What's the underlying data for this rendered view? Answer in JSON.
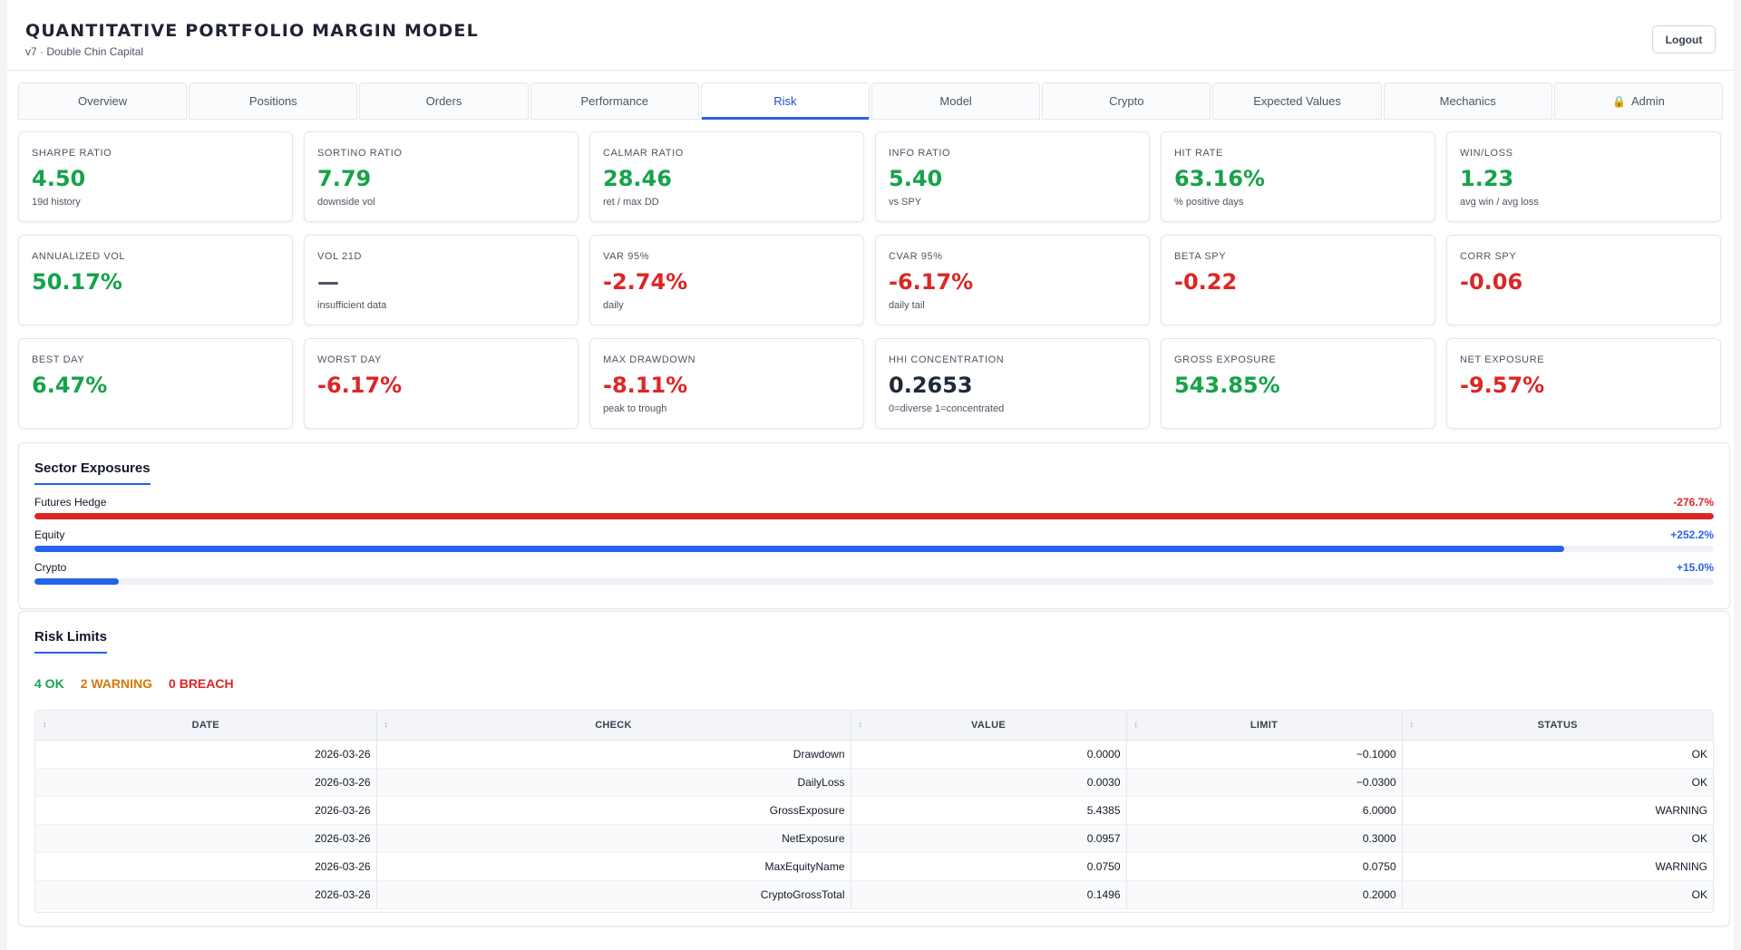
{
  "header": {
    "title": "QUANTITATIVE PORTFOLIO MARGIN MODEL",
    "subtitle": "v7 · Double Chin Capital",
    "logout_label": "Logout"
  },
  "tabs": [
    {
      "label": "Overview",
      "active": false
    },
    {
      "label": "Positions",
      "active": false
    },
    {
      "label": "Orders",
      "active": false
    },
    {
      "label": "Performance",
      "active": false
    },
    {
      "label": "Risk",
      "active": true
    },
    {
      "label": "Model",
      "active": false
    },
    {
      "label": "Crypto",
      "active": false
    },
    {
      "label": "Expected Values",
      "active": false
    },
    {
      "label": "Mechanics",
      "active": false
    },
    {
      "label": "Admin",
      "active": false,
      "icon": "lock-icon",
      "icon_glyph": "🔒"
    }
  ],
  "metrics": [
    {
      "label": "SHARPE RATIO",
      "value": "4.50",
      "sub": "19d history",
      "tone": "pos"
    },
    {
      "label": "SORTINO RATIO",
      "value": "7.79",
      "sub": "downside vol",
      "tone": "pos"
    },
    {
      "label": "CALMAR RATIO",
      "value": "28.46",
      "sub": "ret / max DD",
      "tone": "pos"
    },
    {
      "label": "INFO RATIO",
      "value": "5.40",
      "sub": "vs SPY",
      "tone": "pos"
    },
    {
      "label": "HIT RATE",
      "value": "63.16%",
      "sub": "% positive days",
      "tone": "pos"
    },
    {
      "label": "WIN/LOSS",
      "value": "1.23",
      "sub": "avg win / avg loss",
      "tone": "pos"
    },
    {
      "label": "ANNUALIZED VOL",
      "value": "50.17%",
      "sub": "",
      "tone": "pos"
    },
    {
      "label": "VOL 21D",
      "value": "—",
      "sub": "insufficient data",
      "tone": "dash"
    },
    {
      "label": "VAR 95%",
      "value": "-2.74%",
      "sub": "daily",
      "tone": "neg"
    },
    {
      "label": "CVAR 95%",
      "value": "-6.17%",
      "sub": "daily tail",
      "tone": "neg"
    },
    {
      "label": "BETA SPY",
      "value": "-0.22",
      "sub": "",
      "tone": "neg"
    },
    {
      "label": "CORR SPY",
      "value": "-0.06",
      "sub": "",
      "tone": "neg"
    },
    {
      "label": "BEST DAY",
      "value": "6.47%",
      "sub": "",
      "tone": "pos"
    },
    {
      "label": "WORST DAY",
      "value": "-6.17%",
      "sub": "",
      "tone": "neg"
    },
    {
      "label": "MAX DRAWDOWN",
      "value": "-8.11%",
      "sub": "peak to trough",
      "tone": "neg"
    },
    {
      "label": "HHI CONCENTRATION",
      "value": "0.2653",
      "sub": "0=diverse 1=concentrated",
      "tone": "neutral"
    },
    {
      "label": "GROSS EXPOSURE",
      "value": "543.85%",
      "sub": "",
      "tone": "pos"
    },
    {
      "label": "NET EXPOSURE",
      "value": "-9.57%",
      "sub": "",
      "tone": "neg"
    }
  ],
  "sectors": {
    "title": "Sector Exposures",
    "items": [
      {
        "name": "Futures Hedge",
        "value_label": "-276.7%",
        "fill_fraction": 1.0,
        "color": "#dc2626"
      },
      {
        "name": "Equity",
        "value_label": "+252.2%",
        "fill_fraction": 0.911,
        "color": "#2563eb"
      },
      {
        "name": "Crypto",
        "value_label": "+15.0%",
        "fill_fraction": 0.05,
        "color": "#2563eb"
      }
    ]
  },
  "risk_limits": {
    "title": "Risk Limits",
    "summary": {
      "ok": "4 OK",
      "warning": "2 WARNING",
      "breach": "0 BREACH"
    },
    "columns": [
      "DATE",
      "CHECK",
      "VALUE",
      "LIMIT",
      "STATUS"
    ],
    "rows": [
      [
        "2026-03-26",
        "Drawdown",
        "0.0000",
        "−0.1000",
        "OK"
      ],
      [
        "2026-03-26",
        "DailyLoss",
        "0.0030",
        "−0.0300",
        "OK"
      ],
      [
        "2026-03-26",
        "GrossExposure",
        "5.4385",
        "6.0000",
        "WARNING"
      ],
      [
        "2026-03-26",
        "NetExposure",
        "0.0957",
        "0.3000",
        "OK"
      ],
      [
        "2026-03-26",
        "MaxEquityName",
        "0.0750",
        "0.0750",
        "WARNING"
      ],
      [
        "2026-03-26",
        "CryptoGrossTotal",
        "0.1496",
        "0.2000",
        "OK"
      ]
    ]
  }
}
